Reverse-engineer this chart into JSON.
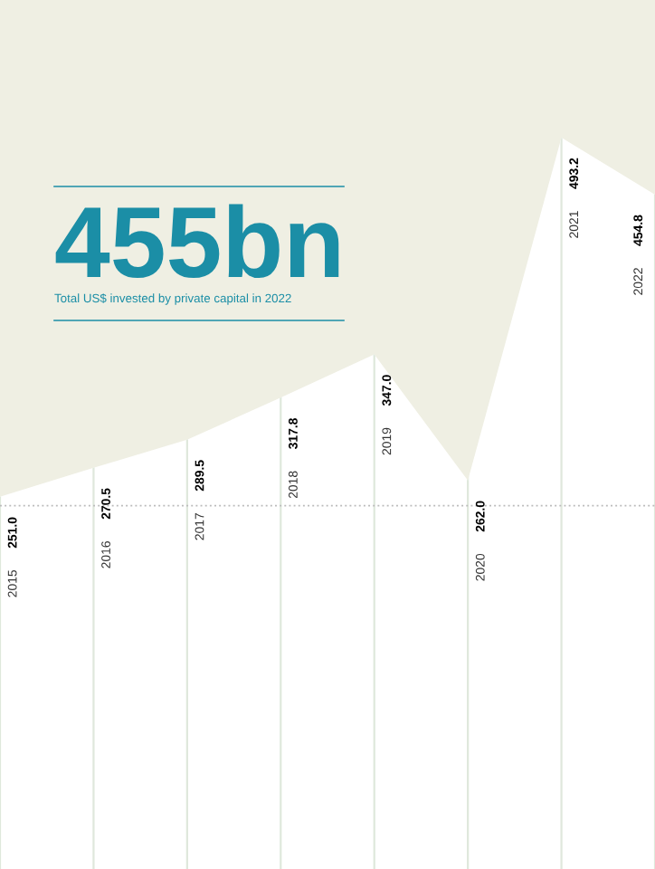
{
  "chart_data": {
    "type": "area",
    "title": "455bn",
    "subtitle": "Total US$ invested by private capital in 2022",
    "categories": [
      "2015",
      "2016",
      "2017",
      "2018",
      "2019",
      "2020",
      "2021",
      "2022"
    ],
    "series": [
      {
        "color": "#ffffff",
        "values": [
          251.0,
          270.5,
          289.5,
          317.8,
          347.0,
          262.0,
          493.2,
          454.8
        ],
        "value_labels": [
          "251.0",
          "270.5",
          "289.5",
          "317.8",
          "347.0",
          "262.0",
          "493.2",
          "454.8"
        ]
      }
    ],
    "ylim": [
      0,
      586
    ],
    "ref_lines": [
      {
        "axis": "y",
        "value": 245,
        "color": "#bbbbbb",
        "line_style": "dotted"
      }
    ],
    "grid": "x",
    "tick_labels": "x"
  }
}
